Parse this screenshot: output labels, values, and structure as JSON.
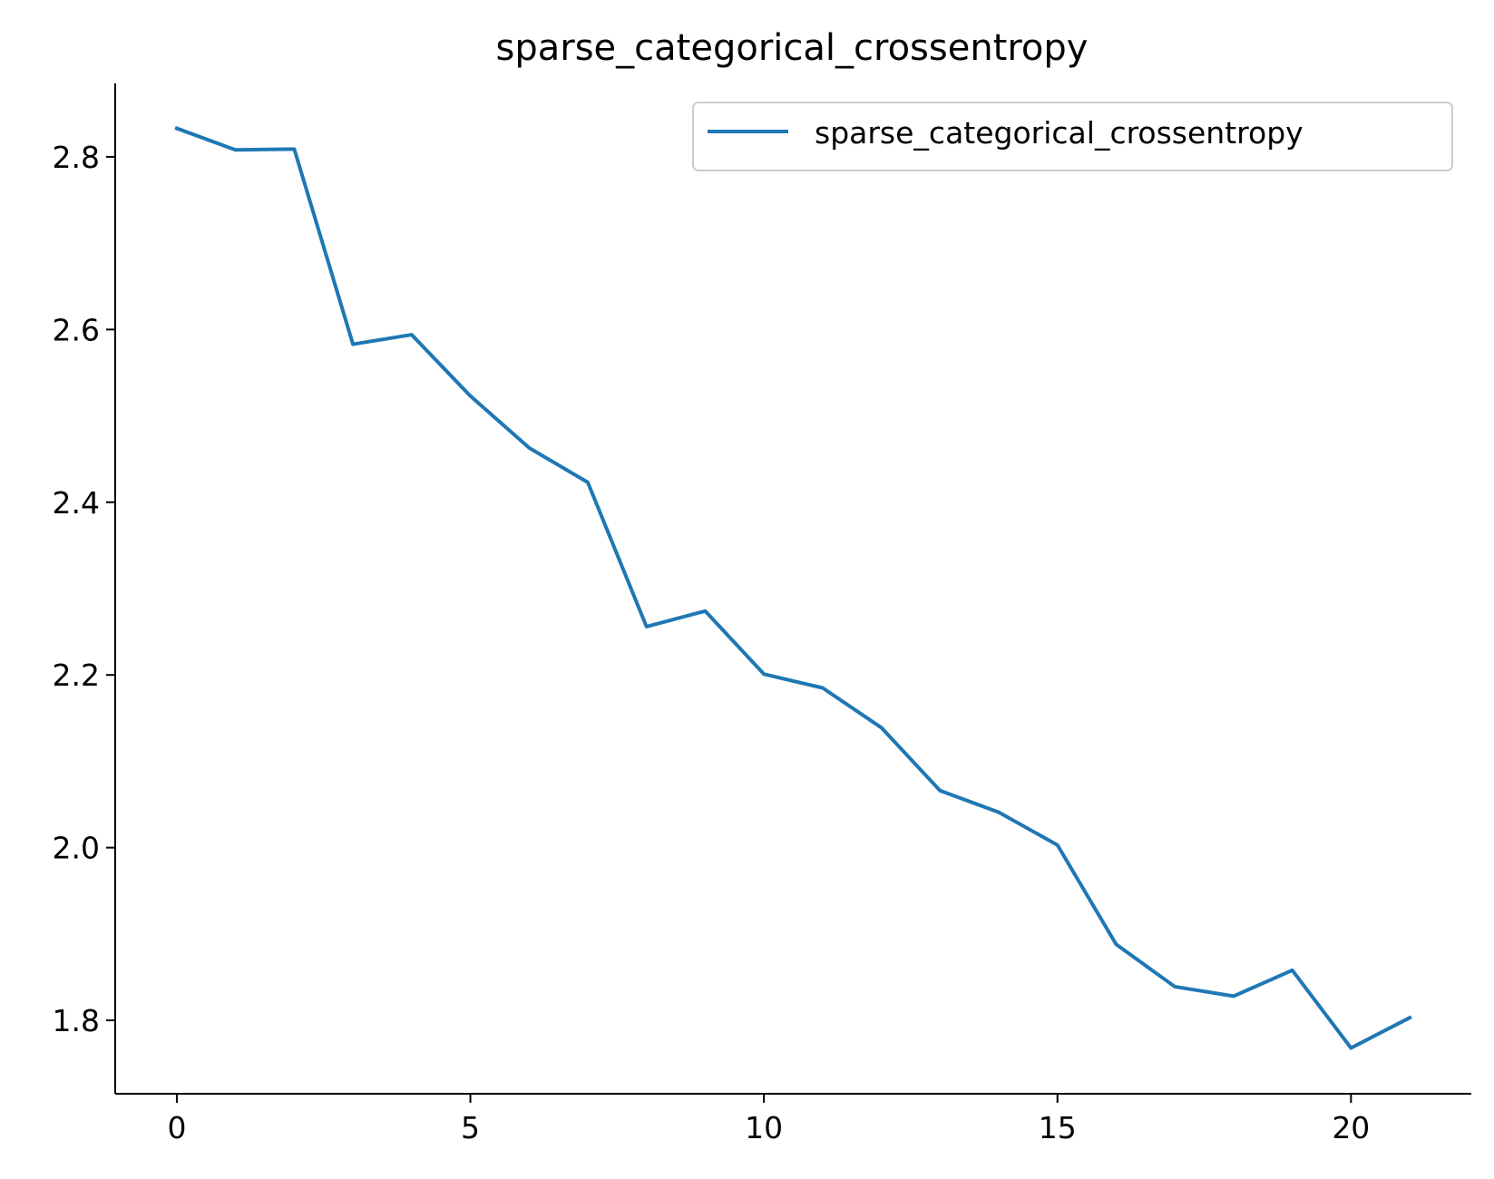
{
  "chart_data": {
    "type": "line",
    "title": "sparse_categorical_crossentropy",
    "xlabel": "",
    "ylabel": "",
    "xlim": [
      -1.05,
      22.05
    ],
    "ylim": [
      1.715,
      2.885
    ],
    "xticks": [
      0,
      5,
      10,
      15,
      20
    ],
    "yticks": [
      1.8,
      2.0,
      2.2,
      2.4,
      2.6,
      2.8
    ],
    "ytick_labels": [
      "1.8",
      "2.0",
      "2.2",
      "2.4",
      "2.6",
      "2.8"
    ],
    "grid": false,
    "legend_position": "top-right",
    "series": [
      {
        "name": "sparse_categorical_crossentropy",
        "color": "#1f77b4",
        "x": [
          0,
          1,
          2,
          3,
          4,
          5,
          6,
          7,
          8,
          9,
          10,
          11,
          12,
          13,
          14,
          15,
          16,
          17,
          18,
          19,
          20,
          21
        ],
        "y": [
          2.833,
          2.808,
          2.809,
          2.583,
          2.594,
          2.523,
          2.463,
          2.423,
          2.256,
          2.274,
          2.201,
          2.185,
          2.139,
          2.066,
          2.041,
          2.003,
          1.888,
          1.839,
          1.828,
          1.858,
          1.768,
          1.803
        ]
      }
    ]
  }
}
